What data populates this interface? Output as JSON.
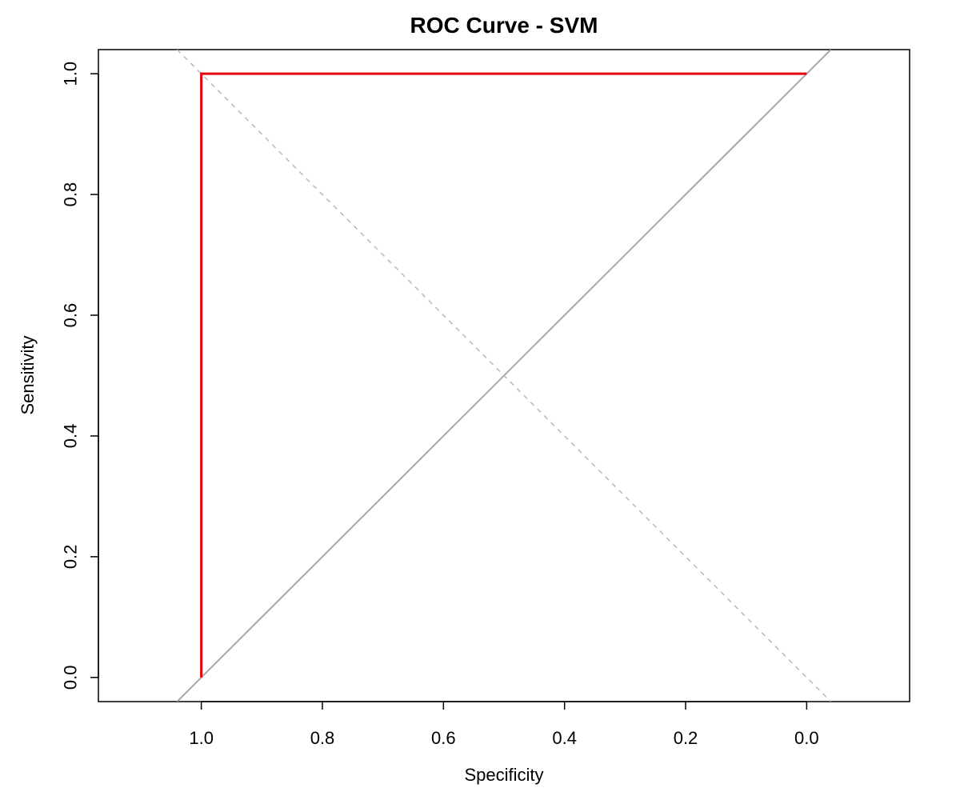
{
  "chart_data": {
    "type": "line",
    "title": "ROC Curve - SVM",
    "xlabel": "Specificity",
    "ylabel": "Sensitivity",
    "x_reversed": true,
    "xlim": [
      1.17,
      -0.17
    ],
    "ylim": [
      -0.04,
      1.04
    ],
    "x_ticks": [
      1.0,
      0.8,
      0.6,
      0.4,
      0.2,
      0.0
    ],
    "x_tick_labels": [
      "1.0",
      "0.8",
      "0.6",
      "0.4",
      "0.2",
      "0.0"
    ],
    "y_ticks": [
      0.0,
      0.2,
      0.4,
      0.6,
      0.8,
      1.0
    ],
    "y_tick_labels": [
      "0.0",
      "0.2",
      "0.4",
      "0.6",
      "0.8",
      "1.0"
    ],
    "grid": false,
    "series": [
      {
        "color": "#e8000b",
        "points": [
          [
            1.0,
            0.0
          ],
          [
            1.0,
            1.0
          ],
          [
            0.0,
            1.0
          ]
        ]
      }
    ],
    "reference_lines": [
      {
        "style": "solid",
        "color": "#a8a8a8",
        "points": [
          [
            1.04,
            -0.04
          ],
          [
            -0.04,
            1.04
          ]
        ]
      },
      {
        "style": "dashed",
        "color": "#b8b8b8",
        "points": [
          [
            1.04,
            1.04
          ],
          [
            -0.04,
            -0.04
          ]
        ]
      }
    ]
  }
}
